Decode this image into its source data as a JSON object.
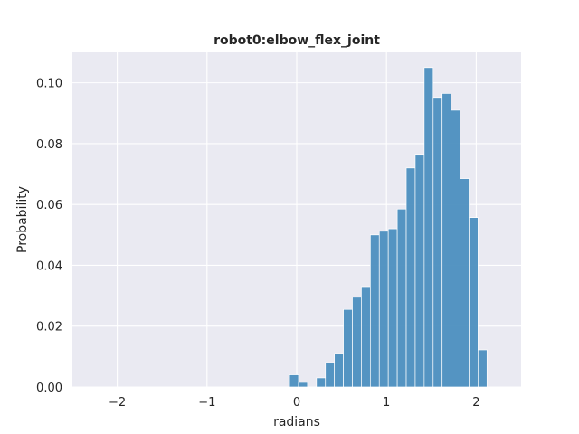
{
  "chart_data": {
    "type": "bar",
    "title": "robot0:elbow_flex_joint",
    "xlabel": "radians",
    "ylabel": "Probability",
    "xlim": [
      -2.5,
      2.5
    ],
    "ylim": [
      0,
      0.11
    ],
    "xticks": [
      -2,
      -1,
      0,
      1,
      2
    ],
    "xtick_labels": [
      "−2",
      "−1",
      "0",
      "1",
      "2"
    ],
    "yticks": [
      0.0,
      0.02,
      0.04,
      0.06,
      0.08,
      0.1
    ],
    "ytick_labels": [
      "0.00",
      "0.02",
      "0.04",
      "0.06",
      "0.08",
      "0.10"
    ],
    "grid": true,
    "bin_width": 0.1,
    "bins": [
      {
        "x0": -0.08,
        "value": 0.004
      },
      {
        "x0": 0.02,
        "value": 0.0015
      },
      {
        "x0": 0.12,
        "value": 0.0
      },
      {
        "x0": 0.22,
        "value": 0.003
      },
      {
        "x0": 0.32,
        "value": 0.008
      },
      {
        "x0": 0.42,
        "value": 0.011
      },
      {
        "x0": 0.52,
        "value": 0.0255
      },
      {
        "x0": 0.62,
        "value": 0.0295
      },
      {
        "x0": 0.72,
        "value": 0.033
      },
      {
        "x0": 0.82,
        "value": 0.05
      },
      {
        "x0": 0.92,
        "value": 0.0512
      },
      {
        "x0": 1.02,
        "value": 0.052
      },
      {
        "x0": 1.12,
        "value": 0.0585
      },
      {
        "x0": 1.22,
        "value": 0.072
      },
      {
        "x0": 1.32,
        "value": 0.0765
      },
      {
        "x0": 1.42,
        "value": 0.105
      },
      {
        "x0": 1.52,
        "value": 0.0952
      },
      {
        "x0": 1.62,
        "value": 0.0965
      },
      {
        "x0": 1.72,
        "value": 0.091
      },
      {
        "x0": 1.82,
        "value": 0.0685
      },
      {
        "x0": 1.92,
        "value": 0.0557
      },
      {
        "x0": 2.02,
        "value": 0.0122
      }
    ]
  }
}
